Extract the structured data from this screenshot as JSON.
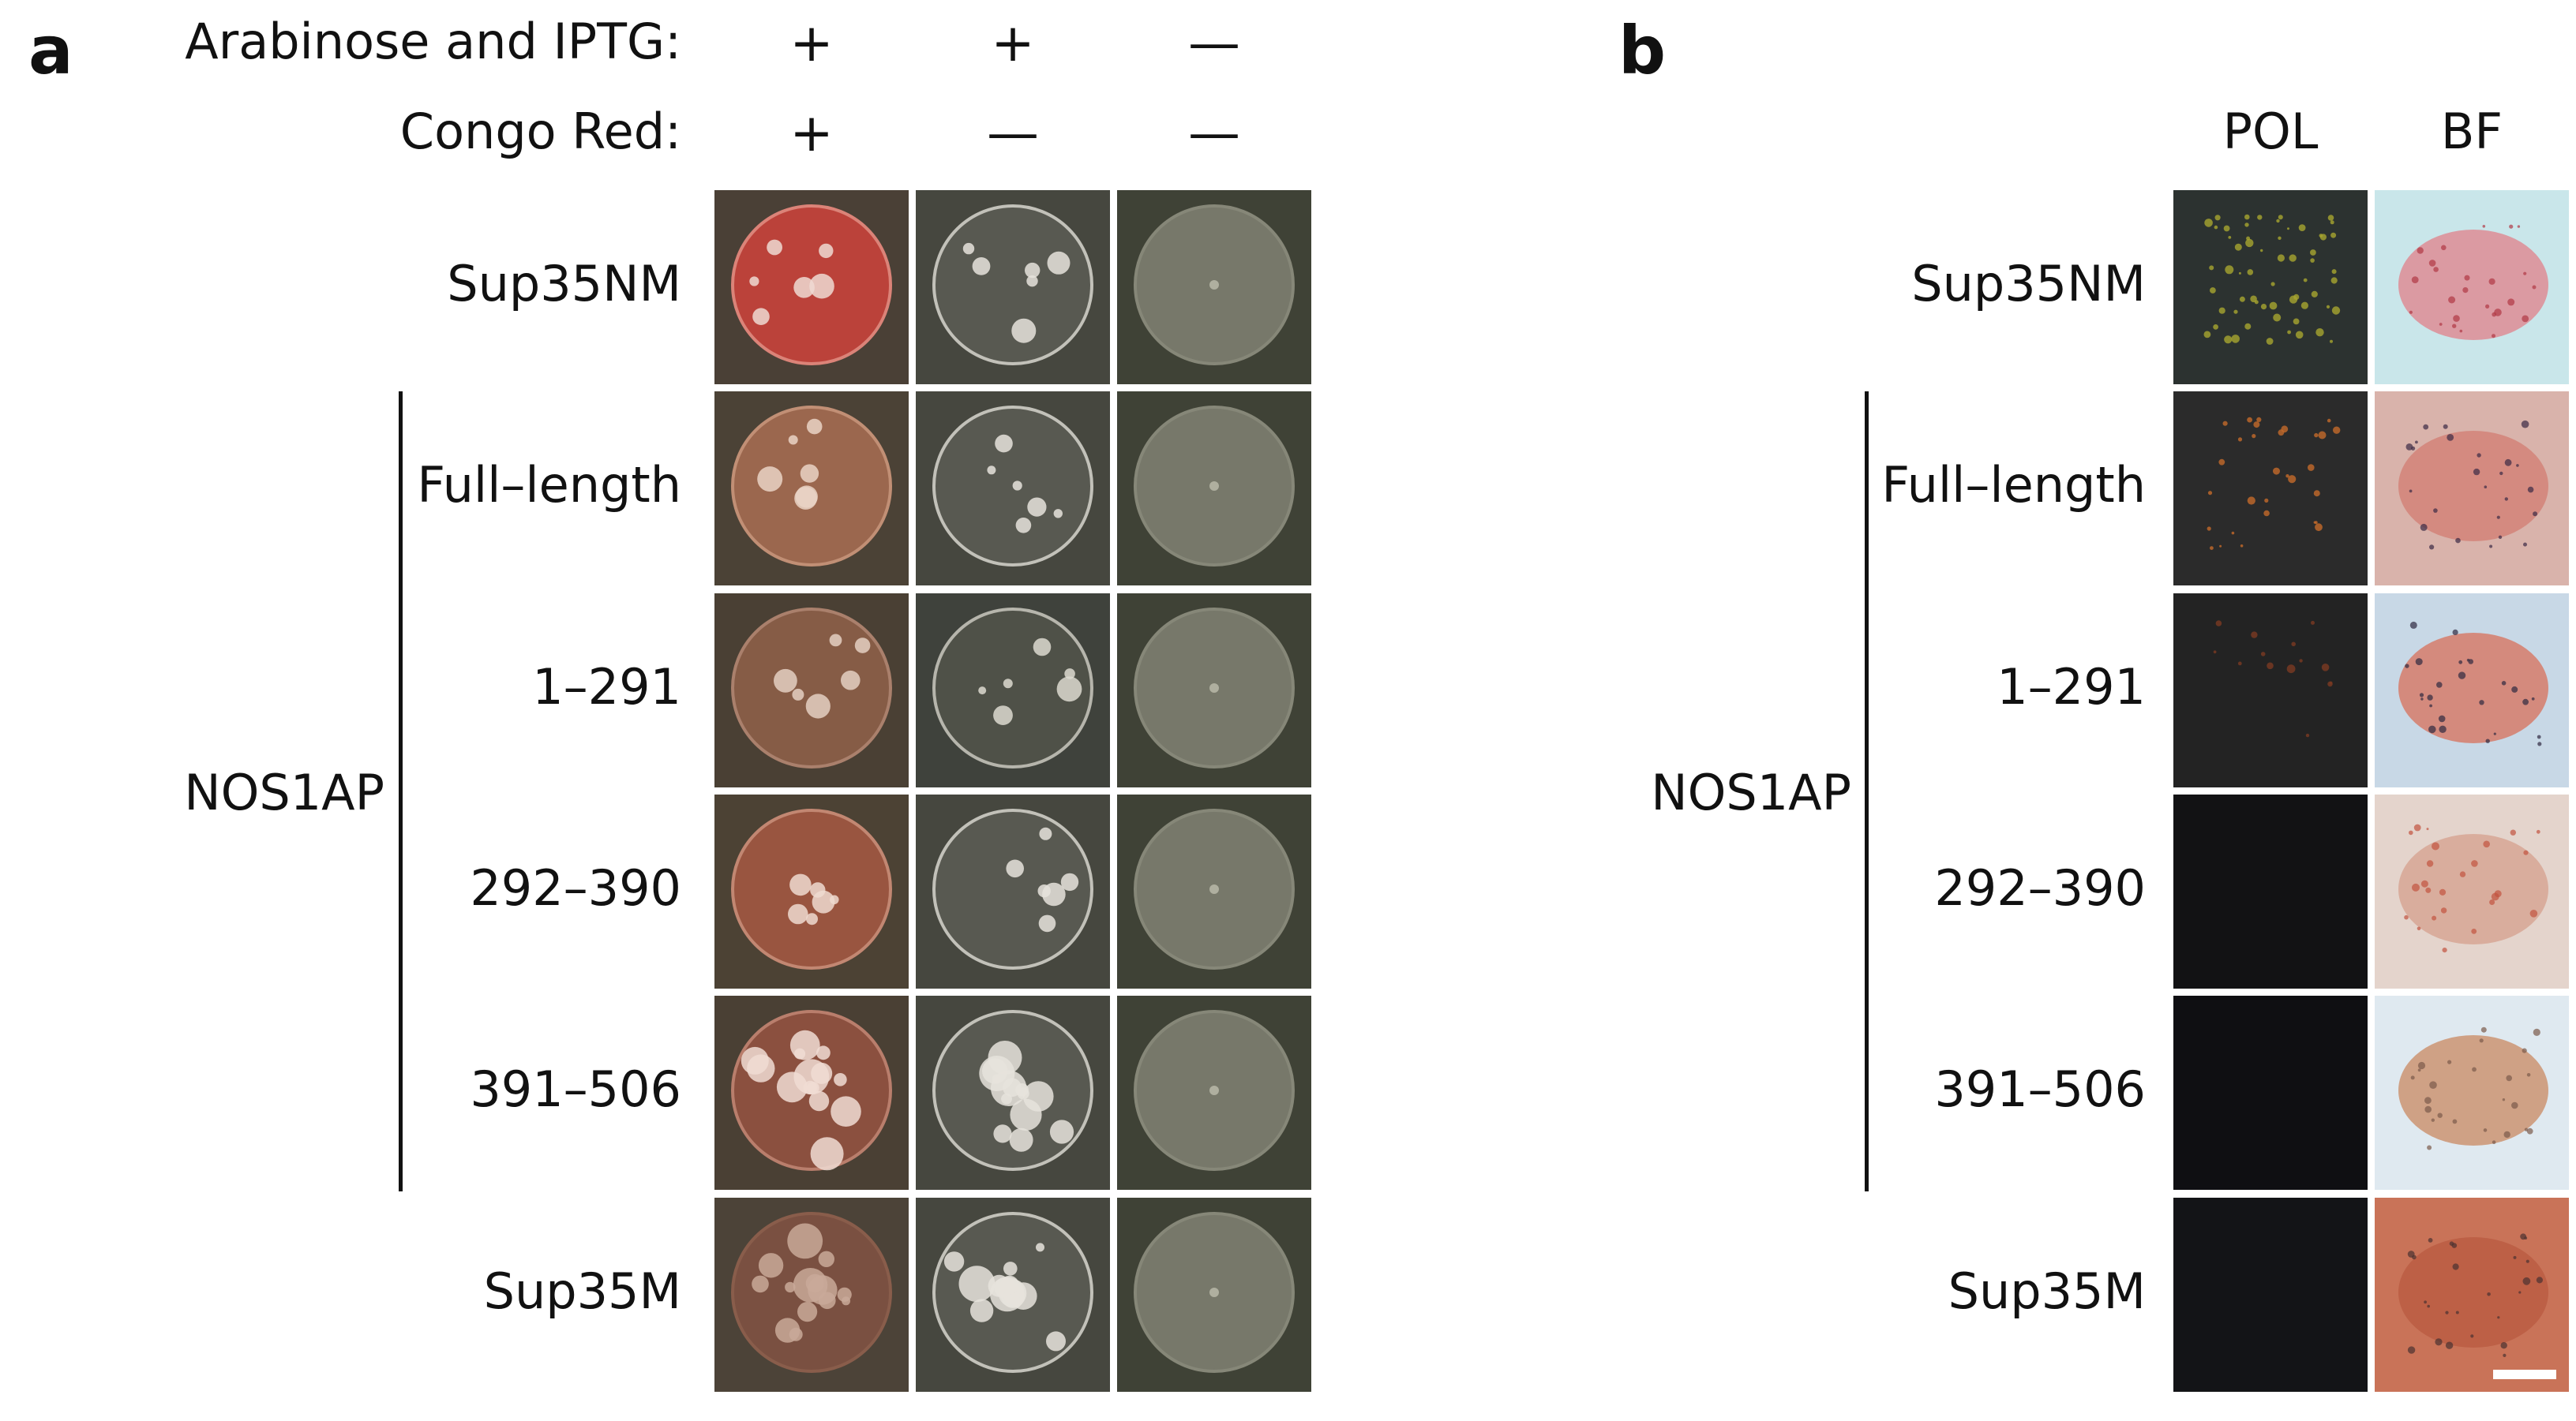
{
  "panel_a": {
    "letter": "a",
    "treatments": [
      {
        "label": "Arabinose and IPTG:",
        "values": [
          "+",
          "+",
          "—"
        ]
      },
      {
        "label": "Congo Red:",
        "values": [
          "+",
          "—",
          "—"
        ]
      }
    ],
    "rows": [
      "Sup35NM",
      "Full–length",
      "1–291",
      "292–390",
      "391–506",
      "Sup35M"
    ],
    "group_label": "NOS1AP"
  },
  "panel_b": {
    "letter": "b",
    "columns": [
      "POL",
      "BF"
    ],
    "rows": [
      "Sup35NM",
      "Full–length",
      "1–291",
      "292–390",
      "391–506",
      "Sup35M"
    ],
    "group_label": "NOS1AP"
  }
}
